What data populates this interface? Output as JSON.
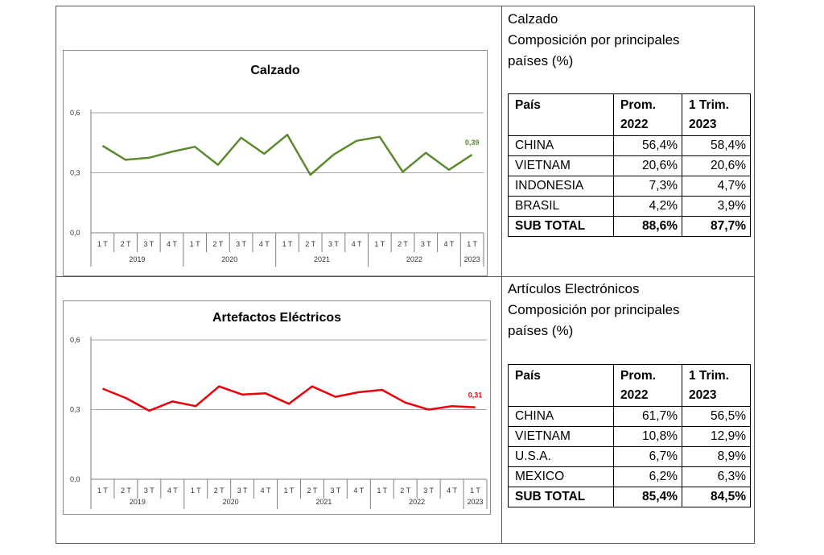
{
  "charts": [
    {
      "chart_data": {
        "type": "line",
        "title": "Calzado",
        "x": [
          "1 T",
          "2 T",
          "3 T",
          "4 T",
          "1 T",
          "2 T",
          "3 T",
          "4 T",
          "1 T",
          "2 T",
          "3 T",
          "4 T",
          "1 T",
          "2 T",
          "3 T",
          "4 T",
          "1 T"
        ],
        "years": [
          "2019",
          "2020",
          "2021",
          "2022",
          "2023"
        ],
        "y_ticks": [
          "0,6",
          "0,3",
          "0,0"
        ],
        "ylim": [
          0,
          0.6
        ],
        "values": [
          0.435,
          0.365,
          0.375,
          0.405,
          0.43,
          0.34,
          0.475,
          0.395,
          0.49,
          0.29,
          0.39,
          0.46,
          0.48,
          0.305,
          0.4,
          0.315,
          0.39
        ],
        "last_label": "0,39",
        "color": "#5b8a2e",
        "grid": true
      }
    },
    {
      "chart_data": {
        "type": "line",
        "title": "Artefactos Eléctricos",
        "x": [
          "1 T",
          "2 T",
          "3 T",
          "4 T",
          "1 T",
          "2 T",
          "3 T",
          "4 T",
          "1 T",
          "2 T",
          "3 T",
          "4 T",
          "1 T",
          "2 T",
          "3 T",
          "4 T",
          "1 T"
        ],
        "years": [
          "2019",
          "2020",
          "2021",
          "2022",
          "2023"
        ],
        "y_ticks": [
          "0,6",
          "0,3",
          "0,0"
        ],
        "ylim": [
          0,
          0.6
        ],
        "values": [
          0.39,
          0.35,
          0.295,
          0.335,
          0.315,
          0.4,
          0.365,
          0.37,
          0.325,
          0.4,
          0.355,
          0.375,
          0.385,
          0.33,
          0.3,
          0.315,
          0.31
        ],
        "last_label": "0,31",
        "color": "#e8000b",
        "grid": true
      }
    }
  ],
  "tables": [
    {
      "caption": [
        "Calzado",
        "Composición por principales",
        "países (%)"
      ],
      "headers": {
        "pais": "País",
        "prom": [
          "Prom.",
          "2022"
        ],
        "trim": [
          "1 Trim.",
          "2023"
        ]
      },
      "rows": [
        {
          "pais": "CHINA",
          "prom": "56,4%",
          "trim": "58,4%"
        },
        {
          "pais": "VIETNAM",
          "prom": "20,6%",
          "trim": "20,6%"
        },
        {
          "pais": "INDONESIA",
          "prom": "7,3%",
          "trim": "4,7%"
        },
        {
          "pais": "BRASIL",
          "prom": "4,2%",
          "trim": "3,9%"
        }
      ],
      "total": {
        "pais": "SUB TOTAL",
        "prom": "88,6%",
        "trim": "87,7%"
      }
    },
    {
      "caption": [
        "Artículos Electrónicos",
        "Composición por principales",
        "países (%)"
      ],
      "headers": {
        "pais": "País",
        "prom": [
          "Prom.",
          "2022"
        ],
        "trim": [
          "1 Trim.",
          "2023"
        ]
      },
      "rows": [
        {
          "pais": "CHINA",
          "prom": "61,7%",
          "trim": "56,5%"
        },
        {
          "pais": "VIETNAM",
          "prom": "10,8%",
          "trim": "12,9%"
        },
        {
          "pais": "U.S.A.",
          "prom": "6,7%",
          "trim": "8,9%"
        },
        {
          "pais": "MEXICO",
          "prom": "6,2%",
          "trim": "6,3%"
        }
      ],
      "total": {
        "pais": "SUB TOTAL",
        "prom": "85,4%",
        "trim": "84,5%"
      }
    }
  ]
}
